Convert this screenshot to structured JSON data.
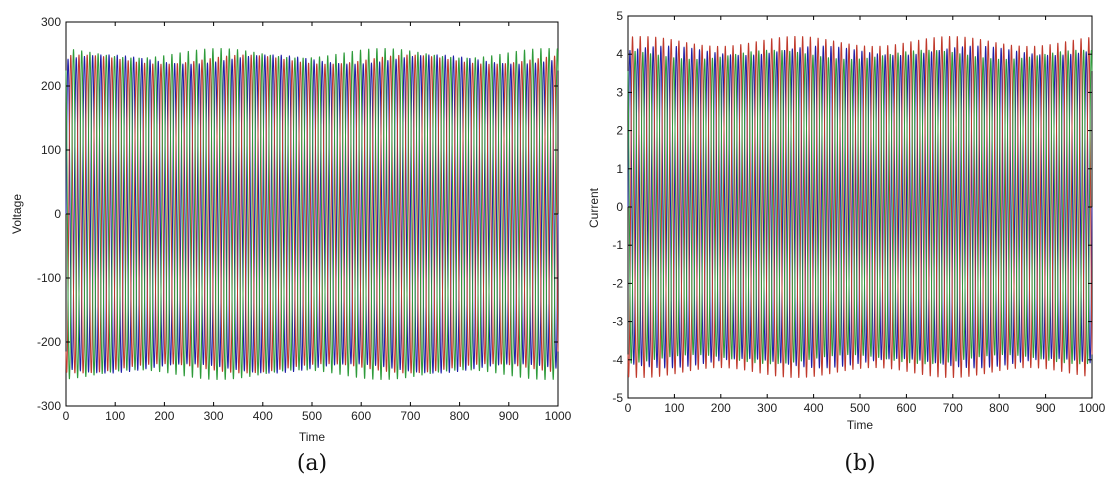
{
  "chart_data": [
    {
      "type": "line",
      "caption": "(a)",
      "xlabel": "Time",
      "ylabel": "Voltage",
      "xlim": [
        0,
        1000
      ],
      "ylim": [
        -300,
        300
      ],
      "xticks": [
        "0",
        "100",
        "200",
        "300",
        "400",
        "500",
        "600",
        "700",
        "800",
        "900",
        "1000"
      ],
      "yticks": [
        "300",
        "200",
        "100",
        "0",
        "-100",
        "-200",
        "-300"
      ],
      "grid": false,
      "description_of_series": "three-phase sinusoidal voltage, ~60 cycles over the window",
      "series": [
        {
          "color": "#1f1fa8",
          "amplitude": 242,
          "phase_deg": 0
        },
        {
          "color": "#c0392b",
          "amplitude": 242,
          "phase_deg": 120
        },
        {
          "color": "#2e9b3a",
          "amplitude": 252,
          "phase_deg": 240
        }
      ],
      "cycles": 60
    },
    {
      "type": "line",
      "caption": "(b)",
      "xlabel": "Time",
      "ylabel": "Current",
      "xlim": [
        0,
        1000
      ],
      "ylim": [
        -5,
        5
      ],
      "xticks": [
        "0",
        "100",
        "200",
        "300",
        "400",
        "500",
        "600",
        "700",
        "800",
        "900",
        "1000"
      ],
      "yticks": [
        "5",
        "4",
        "3",
        "2",
        "1",
        "0",
        "-1",
        "-2",
        "-3",
        "-4",
        "-5"
      ],
      "grid": false,
      "series": [
        {
          "color": "#1f1fa8",
          "amplitude": 4.1,
          "phase_deg": 0
        },
        {
          "color": "#c0392b",
          "amplitude": 4.35,
          "phase_deg": 120
        },
        {
          "color": "#2e9b3a",
          "amplitude": 4.0,
          "phase_deg": 240
        }
      ],
      "cycles": 60
    }
  ]
}
